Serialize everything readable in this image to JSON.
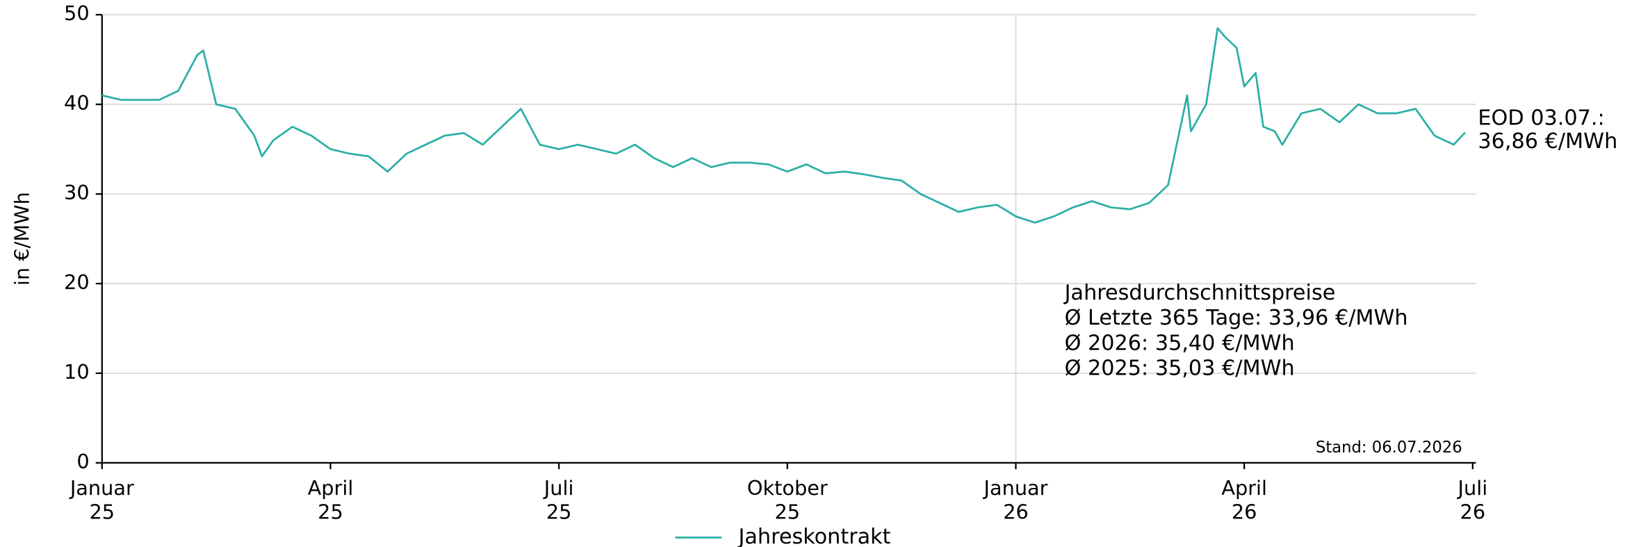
{
  "chart_data": {
    "type": "line",
    "y_label": "in €/MWh",
    "x": [
      0,
      0.25,
      0.5,
      0.75,
      1.0,
      1.25,
      1.33,
      1.5,
      1.75,
      2.0,
      2.1,
      2.25,
      2.5,
      2.75,
      3.0,
      3.25,
      3.5,
      3.75,
      4.0,
      4.25,
      4.5,
      4.75,
      5.0,
      5.25,
      5.5,
      5.75,
      6.0,
      6.25,
      6.5,
      6.75,
      7.0,
      7.25,
      7.5,
      7.75,
      8.0,
      8.25,
      8.5,
      8.75,
      9.0,
      9.25,
      9.5,
      9.75,
      10.0,
      10.25,
      10.5,
      10.75,
      11.0,
      11.25,
      11.5,
      11.75,
      12.0,
      12.25,
      12.5,
      12.75,
      13.0,
      13.25,
      13.5,
      13.75,
      14.0,
      14.25,
      14.3,
      14.5,
      14.65,
      14.75,
      14.9,
      15.0,
      15.15,
      15.25,
      15.4,
      15.5,
      15.75,
      16.0,
      16.25,
      16.5,
      16.75,
      17.0,
      17.25,
      17.5,
      17.75,
      17.9
    ],
    "series": [
      {
        "name": "Jahreskontrakt",
        "color": "#2aafa4",
        "values": [
          41,
          40.5,
          40.5,
          40.5,
          41.5,
          45.5,
          46,
          40,
          39.5,
          36.5,
          34.2,
          36,
          37.5,
          36.5,
          35,
          34.5,
          34.2,
          32.5,
          34.5,
          35.5,
          36.5,
          36.8,
          35.5,
          37.5,
          39.5,
          35.5,
          35,
          35.5,
          35,
          34.5,
          35.5,
          34,
          33,
          34,
          33,
          33.5,
          33.5,
          33.3,
          32.5,
          33.3,
          32.3,
          32.5,
          32.2,
          31.8,
          31.5,
          30,
          29,
          28,
          28.5,
          28.8,
          27.5,
          26.8,
          27.5,
          28.5,
          29.2,
          28.5,
          28.3,
          29,
          31,
          41,
          37,
          40,
          48.5,
          47.5,
          46.3,
          42,
          43.5,
          37.5,
          37,
          35.5,
          39,
          39.5,
          38,
          40,
          39,
          39,
          39.5,
          36.5,
          35.5,
          36.86
        ]
      }
    ],
    "xlim": [
      0,
      18
    ],
    "xticks": [
      {
        "value": 0,
        "label": [
          "Januar",
          "25"
        ]
      },
      {
        "value": 3,
        "label": [
          "April",
          "25"
        ]
      },
      {
        "value": 6,
        "label": [
          "Juli",
          "25"
        ]
      },
      {
        "value": 9,
        "label": [
          "Oktober",
          "25"
        ]
      },
      {
        "value": 12,
        "label": [
          "Januar",
          "26"
        ]
      },
      {
        "value": 15,
        "label": [
          "April",
          "26"
        ]
      },
      {
        "value": 18,
        "label": [
          "Juli",
          "26"
        ]
      }
    ],
    "ylim": [
      0,
      50
    ],
    "yticks": [
      0,
      10,
      20,
      30,
      40,
      50
    ],
    "grid": true,
    "vline": 12,
    "annotations": {
      "eod_label": "EOD 03.07.:",
      "eod_value": "36,86 €/MWh",
      "averages": [
        "Jahresdurchschnittspreise",
        "Ø Letzte 365 Tage: 33,96 €/MWh",
        "Ø 2026: 35,40 €/MWh",
        "Ø 2025: 35,03 €/MWh"
      ],
      "stand": "Stand: 06.07.2026"
    },
    "legend": "bottom"
  }
}
